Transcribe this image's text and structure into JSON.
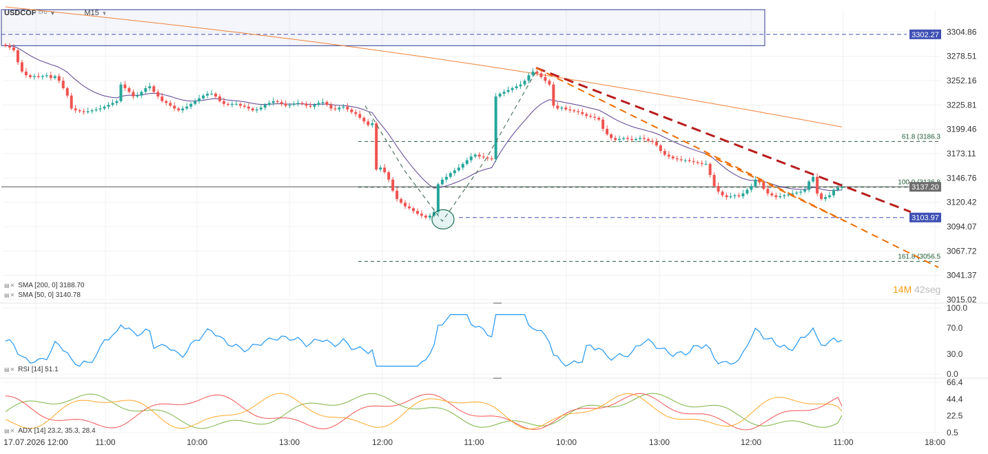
{
  "header": {
    "symbol": "USDCOP",
    "instrument_type": "CFD",
    "timeframe": "M15"
  },
  "legend": {
    "sma200": "SMA [200, 0] 3188.70",
    "sma50": "SMA [50, 0] 3140.78",
    "rsi": "RSI [14] 51.1",
    "adx": "ADX [14] 23.2, 35.3, 28.4"
  },
  "timer": {
    "minutes": "14",
    "minutes_unit": "M",
    "seconds": "42",
    "seconds_unit": "seg"
  },
  "colors": {
    "bull": "#26a69a",
    "bear": "#ef5350",
    "sma200": "#f0823a",
    "sma50": "#5b3f8f",
    "rsi": "#2196f3",
    "trend_main": "#b71c1c",
    "trend_secondary": "#ef6c00",
    "price_badge": "#3f51b5",
    "last_badge": "#6d6d6d"
  },
  "chart_data": [
    {
      "type": "candlestick",
      "x_labels": [
        "17.07.2026 12:00",
        "11:00",
        "10:00",
        "13:00",
        "12:00",
        "11:00",
        "10:00",
        "13:00",
        "12:00",
        "11:00",
        "18:00"
      ],
      "y_ticks": [
        "3304.86",
        "3278.51",
        "3252.16",
        "3225.81",
        "3199.46",
        "3173.11",
        "3146.76",
        "3120.42",
        "3094.07",
        "3067.72",
        "3041.37",
        "3015.02"
      ],
      "ylim": [
        3015.02,
        3318
      ],
      "price_labels": {
        "resistance": "3302.27",
        "last": "3137.20",
        "support": "3103.97"
      },
      "fib_labels": [
        "61.8 (3186.3",
        "100.0 (3136.8",
        "161.8 (3056.5"
      ],
      "fib_levels": [
        3186.3,
        3136.8,
        3056.5
      ],
      "resistance_zone": [
        3290,
        3329
      ],
      "candle_count": 201,
      "close_series": [
        3290,
        3288,
        3285,
        3272,
        3262,
        3258,
        3256,
        3257,
        3256,
        3257,
        3258,
        3255,
        3257,
        3252,
        3244,
        3236,
        3222,
        3220,
        3219,
        3218,
        3219,
        3220,
        3221,
        3222,
        3224,
        3226,
        3228,
        3230,
        3248,
        3244,
        3240,
        3235,
        3236,
        3240,
        3244,
        3246,
        3240,
        3235,
        3230,
        3228,
        3225,
        3222,
        3220,
        3222,
        3224,
        3227,
        3230,
        3233,
        3236,
        3238,
        3238,
        3235,
        3230,
        3227,
        3226,
        3227,
        3227,
        3225,
        3224,
        3222,
        3220,
        3221,
        3223,
        3226,
        3228,
        3230,
        3229,
        3227,
        3225,
        3226,
        3227,
        3228,
        3227,
        3225,
        3224,
        3226,
        3228,
        3229,
        3226,
        3222,
        3221,
        3223,
        3224,
        3221,
        3218,
        3216,
        3212,
        3208,
        3204,
        3206,
        3156,
        3158,
        3153,
        3145,
        3133,
        3124,
        3120,
        3116,
        3114,
        3111,
        3108,
        3106,
        3104,
        3106,
        3110,
        3140,
        3145,
        3148,
        3152,
        3155,
        3158,
        3162,
        3166,
        3170,
        3172,
        3170,
        3169,
        3168,
        3167,
        3235,
        3238,
        3240,
        3242,
        3244,
        3246,
        3248,
        3252,
        3258,
        3262,
        3260,
        3256,
        3252,
        3248,
        3225,
        3222,
        3223,
        3221,
        3220,
        3219,
        3218,
        3216,
        3214,
        3213,
        3212,
        3210,
        3200,
        3194,
        3190,
        3188,
        3189,
        3190,
        3189,
        3188,
        3189,
        3190,
        3189,
        3187,
        3186,
        3182,
        3176,
        3172,
        3170,
        3168,
        3167,
        3166,
        3166,
        3165,
        3164,
        3163,
        3162,
        3162,
        3150,
        3138,
        3132,
        3128,
        3126,
        3127,
        3128,
        3127,
        3130,
        3134,
        3138,
        3145,
        3142,
        3135,
        3130,
        3128,
        3126,
        3127,
        3128,
        3129,
        3130,
        3131,
        3132,
        3134,
        3143,
        3148,
        3130,
        3124,
        3126,
        3128,
        3134,
        3136,
        3137.2
      ]
    },
    {
      "type": "line",
      "name": "RSI [14]",
      "y_ticks": [
        "100.0",
        "70.0",
        "30.0",
        "0.0"
      ],
      "ylim": [
        0,
        100
      ],
      "last": 51.1
    },
    {
      "type": "line",
      "name": "ADX [14]",
      "y_ticks": [
        "66.4",
        "44.4",
        "22.5",
        "0.5"
      ],
      "ylim": [
        0.5,
        66.4
      ],
      "last_values": [
        23.2,
        35.3,
        28.4
      ]
    }
  ]
}
